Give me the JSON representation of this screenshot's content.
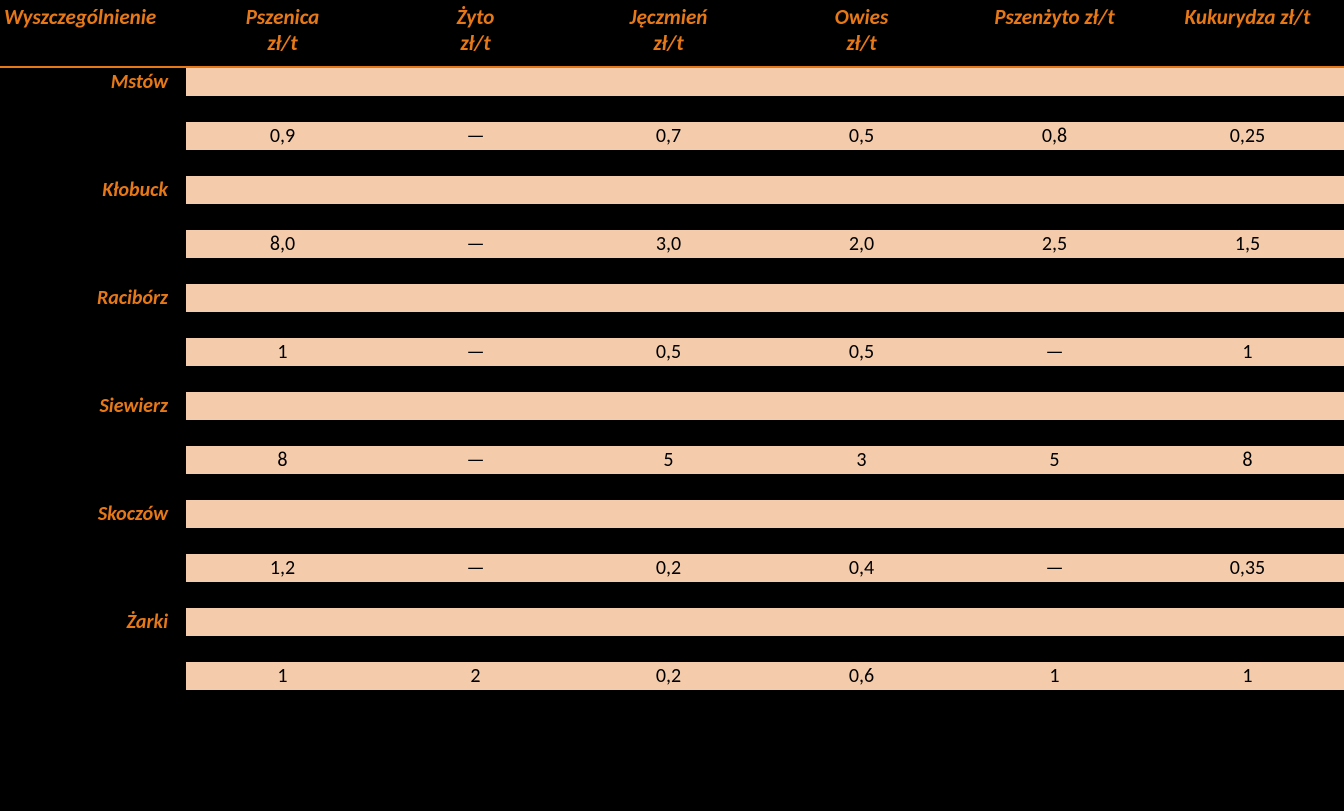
{
  "columns": [
    {
      "header_line1": "Wyszczególnienie",
      "header_line2": ""
    },
    {
      "header_line1": "Pszenica",
      "header_line2": "zł/t"
    },
    {
      "header_line1": "Żyto",
      "header_line2": "zł/t"
    },
    {
      "header_line1": "Jęczmień",
      "header_line2": "zł/t"
    },
    {
      "header_line1": "Owies",
      "header_line2": "zł/t"
    },
    {
      "header_line1": "Pszenżyto zł/t",
      "header_line2": ""
    },
    {
      "header_line1": "Kukurydza zł/t",
      "header_line2": ""
    }
  ],
  "rows": [
    {
      "city": "Mstów",
      "values": [
        "0,9",
        "—",
        "0,7",
        "0,5",
        "0,8",
        "0,25"
      ]
    },
    {
      "city": "Kłobuck",
      "values": [
        "8,0",
        "—",
        "3,0",
        "2,0",
        "2,5",
        "1,5"
      ]
    },
    {
      "city": "Racibórz",
      "values": [
        "1",
        "—",
        "0,5",
        "0,5",
        "—",
        "1"
      ]
    },
    {
      "city": "Siewierz",
      "values": [
        "8",
        "—",
        "5",
        "3",
        "5",
        "8"
      ]
    },
    {
      "city": "Skoczów",
      "values": [
        "1,2",
        "—",
        "0,2",
        "0,4",
        "—",
        "0,35"
      ]
    },
    {
      "city": "Żarki",
      "values": [
        "1",
        "2",
        "0,2",
        "0,6",
        "1",
        "1"
      ]
    }
  ],
  "colors": {
    "accent": "#e67817",
    "band": "#f4cbab",
    "bg": "#000000",
    "text_on_band": "#000000"
  },
  "typography": {
    "header_fontsize": 21,
    "cell_fontsize": 20,
    "font_family": "Calibri"
  }
}
